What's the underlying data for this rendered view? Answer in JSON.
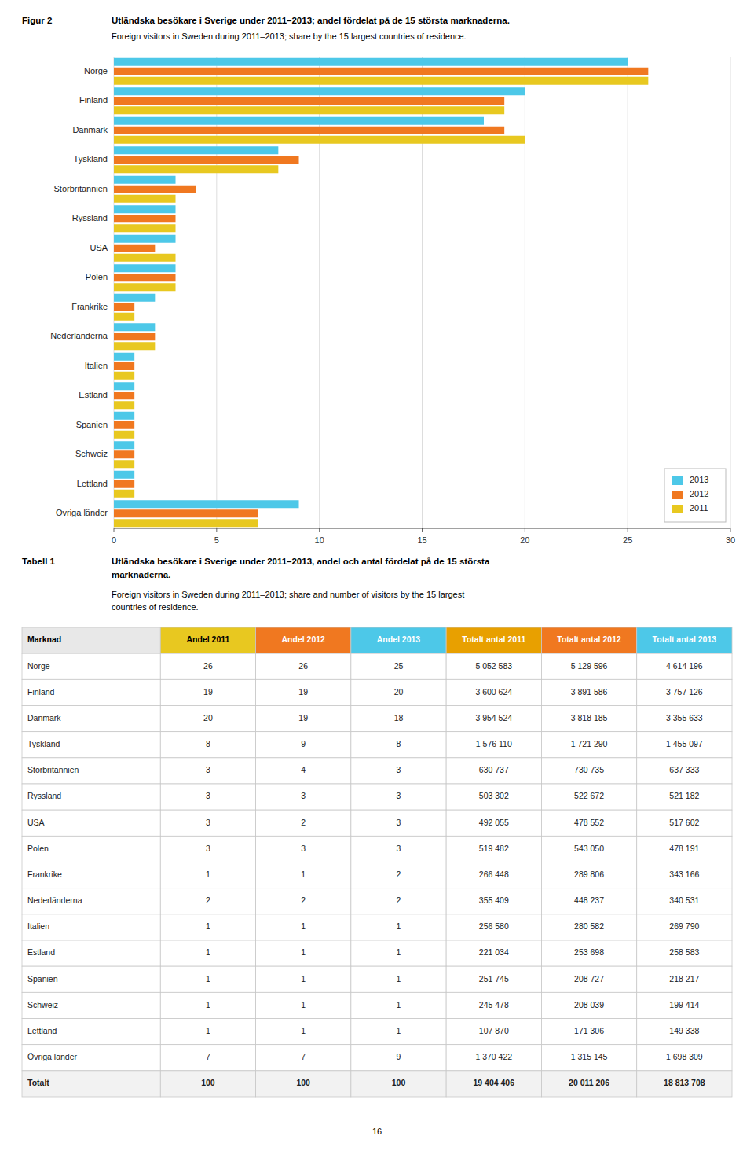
{
  "chart_data": {
    "type": "bar",
    "orientation": "horizontal",
    "title": "Utländska besökare i Sverige under 2011–2013; andel fördelat på de 15 största marknaderna.",
    "subtitle": "Foreign visitors in Sweden during 2011–2013; share by the 15 largest countries of residence.",
    "categories": [
      "Norge",
      "Finland",
      "Danmark",
      "Tyskland",
      "Storbritannien",
      "Ryssland",
      "USA",
      "Polen",
      "Frankrike",
      "Nederländerna",
      "Italien",
      "Estland",
      "Spanien",
      "Schweiz",
      "Lettland",
      "Övriga länder"
    ],
    "series": [
      {
        "name": "2013",
        "color": "#4DC8E8",
        "values": [
          25,
          20,
          18,
          8,
          3,
          3,
          3,
          3,
          2,
          2,
          1,
          1,
          1,
          1,
          1,
          9
        ]
      },
      {
        "name": "2012",
        "color": "#F07820",
        "values": [
          26,
          19,
          19,
          9,
          4,
          3,
          2,
          3,
          1,
          2,
          1,
          1,
          1,
          1,
          1,
          7
        ]
      },
      {
        "name": "2011",
        "color": "#E8C820",
        "values": [
          26,
          19,
          20,
          8,
          3,
          3,
          3,
          3,
          1,
          2,
          1,
          1,
          1,
          1,
          1,
          7
        ]
      }
    ],
    "xlim": [
      0,
      30
    ],
    "xticks": [
      0,
      5,
      10,
      15,
      20,
      25,
      30
    ],
    "grid": true,
    "legend": "lower right"
  },
  "figure_label": "Figur 2",
  "table": {
    "label": "Tabell 1",
    "title": [
      "Utländska besökare i Sverige under 2011–2013, andel och antal fördelat på de 15 största",
      "marknaderna."
    ],
    "subtitle": [
      "Foreign visitors in Sweden during 2011–2013; share and number of visitors by the 15 largest",
      "countries of residence."
    ],
    "header": [
      "Marknad",
      "Andel 2011",
      "Andel 2012",
      "Andel 2013",
      "Totalt antal 2011",
      "Totalt antal 2012",
      "Totalt antal 2013"
    ],
    "header_colors": [
      "#E8E8E8",
      "#E8C820",
      "#F07820",
      "#4DC8E8",
      "#E8A000",
      "#F07820",
      "#4DC8E8"
    ],
    "header_text_colors": [
      "#000000",
      "#000000",
      "#ffffff",
      "#ffffff",
      "#ffffff",
      "#ffffff",
      "#ffffff"
    ],
    "rows": [
      [
        "Norge",
        "26",
        "26",
        "25",
        "5 052 583",
        "5 129 596",
        "4 614 196"
      ],
      [
        "Finland",
        "19",
        "19",
        "20",
        "3 600 624",
        "3 891 586",
        "3 757 126"
      ],
      [
        "Danmark",
        "20",
        "19",
        "18",
        "3 954 524",
        "3 818 185",
        "3 355 633"
      ],
      [
        "Tyskland",
        "8",
        "9",
        "8",
        "1 576 110",
        "1 721 290",
        "1 455 097"
      ],
      [
        "Storbritannien",
        "3",
        "4",
        "3",
        "630 737",
        "730 735",
        "637 333"
      ],
      [
        "Ryssland",
        "3",
        "3",
        "3",
        "503 302",
        "522 672",
        "521 182"
      ],
      [
        "USA",
        "3",
        "2",
        "3",
        "492 055",
        "478 552",
        "517 602"
      ],
      [
        "Polen",
        "3",
        "3",
        "3",
        "519 482",
        "543 050",
        "478 191"
      ],
      [
        "Frankrike",
        "1",
        "1",
        "2",
        "266 448",
        "289 806",
        "343 166"
      ],
      [
        "Nederländerna",
        "2",
        "2",
        "2",
        "355 409",
        "448 237",
        "340 531"
      ],
      [
        "Italien",
        "1",
        "1",
        "1",
        "256 580",
        "280 582",
        "269 790"
      ],
      [
        "Estland",
        "1",
        "1",
        "1",
        "221 034",
        "253 698",
        "258 583"
      ],
      [
        "Spanien",
        "1",
        "1",
        "1",
        "251 745",
        "208 727",
        "218 217"
      ],
      [
        "Schweiz",
        "1",
        "1",
        "1",
        "245 478",
        "208 039",
        "199 414"
      ],
      [
        "Lettland",
        "1",
        "1",
        "1",
        "107 870",
        "171 306",
        "149 338"
      ],
      [
        "Övriga länder",
        "7",
        "7",
        "9",
        "1 370 422",
        "1 315 145",
        "1 698 309"
      ],
      [
        "Totalt",
        "100",
        "100",
        "100",
        "19 404 406",
        "20 011 206",
        "18 813 708"
      ]
    ]
  },
  "page_number": "16"
}
